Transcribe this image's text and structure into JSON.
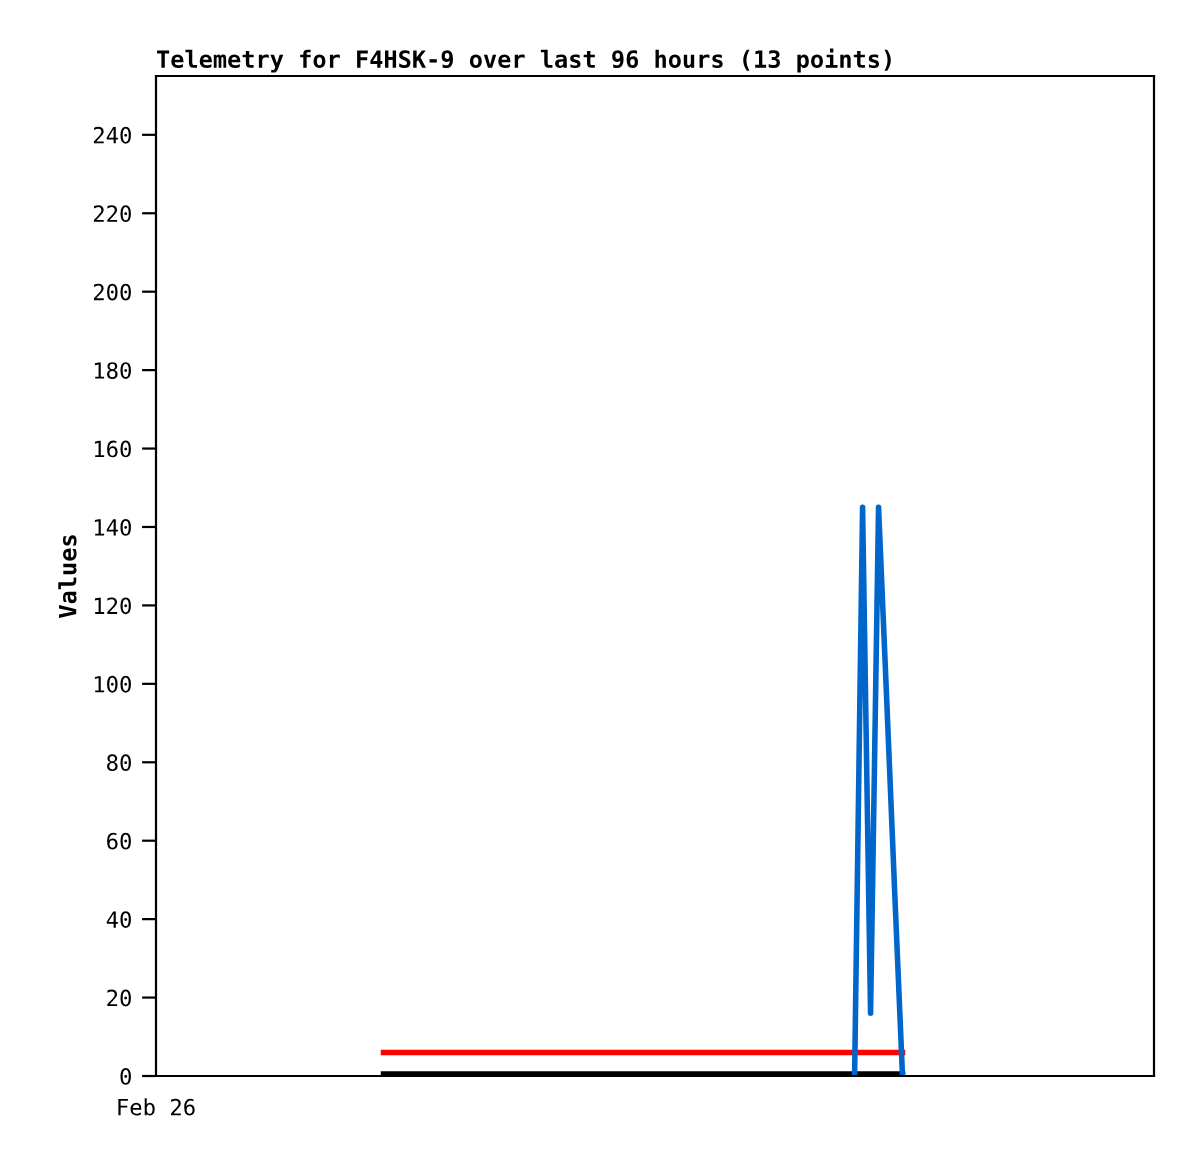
{
  "chart_data": {
    "type": "line",
    "title": "Telemetry for F4HSK-9 over last 96 hours (13 points)",
    "ylabel": "Values",
    "annotations": [
      "Feb 26"
    ],
    "categories": [
      null,
      null,
      null,
      null,
      null,
      null,
      null,
      null,
      null,
      null,
      null,
      null,
      null,
      null,
      null,
      null,
      null,
      null,
      null,
      null,
      null,
      null,
      null,
      null,
      null,
      null,
      null,
      null,
      null,
      null,
      null,
      null,
      null,
      null,
      null,
      null,
      null,
      null,
      null,
      null,
      null,
      null,
      null,
      null,
      null,
      null,
      null,
      null,
      null,
      null,
      null,
      null,
      null,
      null,
      null,
      null,
      null,
      null,
      null,
      null,
      null,
      null,
      null,
      null,
      null,
      null,
      null,
      null,
      null,
      null,
      null,
      null,
      null,
      null,
      null,
      null,
      null,
      null,
      null,
      null,
      null,
      null,
      null,
      null,
      null,
      null,
      null,
      null,
      null,
      null,
      null,
      null,
      null,
      null,
      null,
      null,
      null,
      null,
      null,
      null,
      null,
      null,
      null,
      null,
      null,
      null,
      null,
      null,
      null,
      null,
      null,
      null,
      null,
      null,
      null,
      null,
      null,
      null,
      null,
      null,
      null,
      null,
      null,
      null,
      null
    ],
    "ylim": [
      0,
      255
    ],
    "yticks": [
      0,
      20,
      40,
      60,
      80,
      100,
      120,
      140,
      160,
      180,
      200,
      220,
      240
    ],
    "series": [
      {
        "color": "#ff0000",
        "values": [
          null,
          null,
          null,
          null,
          null,
          null,
          null,
          null,
          null,
          null,
          null,
          null,
          null,
          null,
          null,
          null,
          null,
          null,
          null,
          null,
          null,
          null,
          null,
          null,
          null,
          null,
          null,
          null,
          6,
          6,
          6,
          6,
          6,
          6,
          6,
          6,
          6,
          6,
          6,
          6,
          6,
          6,
          6,
          6,
          6,
          6,
          6,
          6,
          6,
          6,
          6,
          6,
          6,
          6,
          6,
          6,
          6,
          6,
          6,
          6,
          6,
          6,
          6,
          6,
          6,
          6,
          6,
          6,
          6,
          6,
          6,
          6,
          6,
          6,
          6,
          6,
          6,
          6,
          6,
          6,
          6,
          6,
          6,
          6,
          6,
          6,
          6,
          6,
          6,
          6,
          6,
          6,
          6,
          6,
          null,
          null,
          null,
          null,
          null,
          null,
          null,
          null,
          null,
          null,
          null,
          null,
          null,
          null,
          null,
          null,
          null,
          null,
          null,
          null,
          null,
          null,
          null,
          null,
          null,
          null,
          null,
          null,
          null,
          null,
          null
        ]
      },
      {
        "color": "#000000",
        "values": [
          null,
          null,
          null,
          null,
          null,
          null,
          null,
          null,
          null,
          null,
          null,
          null,
          null,
          null,
          null,
          null,
          null,
          null,
          null,
          null,
          null,
          null,
          null,
          null,
          null,
          null,
          null,
          null,
          0.5,
          0.5,
          0.5,
          0.5,
          0.5,
          0.5,
          0.5,
          0.5,
          0.5,
          0.5,
          0.5,
          0.5,
          0.5,
          0.5,
          0.5,
          0.5,
          0.5,
          0.5,
          0.5,
          0.5,
          0.5,
          0.5,
          0.5,
          0.5,
          0.5,
          0.5,
          0.5,
          0.5,
          0.5,
          0.5,
          0.5,
          0.5,
          0.5,
          0.5,
          0.5,
          0.5,
          0.5,
          0.5,
          0.5,
          0.5,
          0.5,
          0.5,
          0.5,
          0.5,
          0.5,
          0.5,
          0.5,
          0.5,
          0.5,
          0.5,
          0.5,
          0.5,
          0.5,
          0.5,
          0.5,
          0.5,
          0.5,
          0.5,
          0.5,
          0.5,
          0.5,
          0.5,
          0.5,
          0.5,
          0.5,
          0.5,
          null,
          null,
          null,
          null,
          null,
          null,
          null,
          null,
          null,
          null,
          null,
          null,
          null,
          null,
          null,
          null,
          null,
          null,
          null,
          null,
          null,
          null,
          null,
          null,
          null,
          null,
          null,
          null,
          null,
          null,
          null
        ]
      },
      {
        "color": "#0066cc",
        "values": [
          null,
          null,
          null,
          null,
          null,
          null,
          null,
          null,
          null,
          null,
          null,
          null,
          null,
          null,
          null,
          null,
          null,
          null,
          null,
          null,
          null,
          null,
          null,
          null,
          null,
          null,
          null,
          null,
          null,
          null,
          null,
          null,
          null,
          null,
          null,
          null,
          null,
          null,
          null,
          null,
          null,
          null,
          null,
          null,
          null,
          null,
          null,
          null,
          null,
          null,
          null,
          null,
          null,
          null,
          null,
          null,
          null,
          null,
          null,
          null,
          null,
          null,
          null,
          null,
          null,
          null,
          null,
          null,
          null,
          null,
          null,
          null,
          null,
          null,
          null,
          null,
          null,
          null,
          null,
          null,
          null,
          null,
          null,
          null,
          null,
          null,
          null,
          0,
          145,
          16,
          145,
          97,
          48,
          0,
          null,
          null,
          null,
          null,
          null,
          null,
          null,
          null,
          null,
          null,
          null,
          null,
          null,
          null,
          null,
          null,
          null,
          null,
          null,
          null,
          null,
          null,
          null,
          null,
          null,
          null,
          null,
          null,
          null,
          null,
          null
        ]
      }
    ],
    "grid": false,
    "marker": "none",
    "line_style": "solid"
  }
}
